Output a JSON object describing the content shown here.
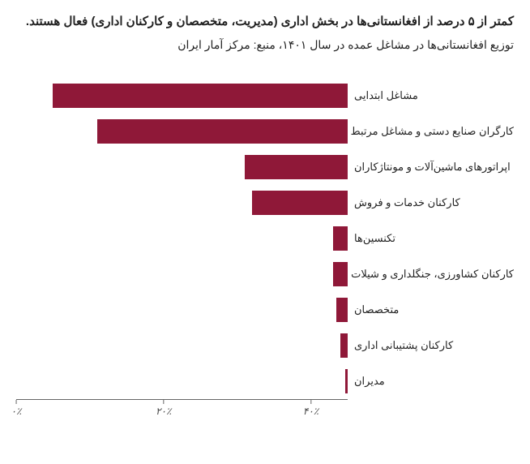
{
  "title": "کمتر از ۵ درصد از افغانستانی‌ها در بخش اداری (مدیریت، متخصصان و کارکنان اداری) فعال هستند.",
  "subtitle": "توزیع افغانستانی‌ها در مشاغل عمده در سال ۱۴۰۱، منبع: مرکز آمار ایران",
  "chart": {
    "type": "bar",
    "bar_color": "#8f1838",
    "background_color": "#ffffff",
    "axis_color": "#666666",
    "label_fontsize": 13,
    "title_fontsize": 15,
    "xmax": 45,
    "categories": [
      {
        "label": "مشاغل ابتدایی",
        "value": 40
      },
      {
        "label": "کارگران صنایع دستی و مشاغل مرتبط",
        "value": 34
      },
      {
        "label": "اپراتورهای ماشین‌آلات و مونتاژکاران",
        "value": 14
      },
      {
        "label": "کارکنان خدمات و فروش",
        "value": 13
      },
      {
        "label": "تکنسین‌ها",
        "value": 2
      },
      {
        "label": "کارکنان کشاورزی، جنگلداری و شیلات",
        "value": 2
      },
      {
        "label": "متخصصان",
        "value": 1.5
      },
      {
        "label": "کارکنان پشتیبانی اداری",
        "value": 1
      },
      {
        "label": "مدیران",
        "value": 0.3
      }
    ],
    "xticks": [
      {
        "pos": 0,
        "label": "۰٪"
      },
      {
        "pos": 20,
        "label": "۲۰٪"
      },
      {
        "pos": 40,
        "label": "۴۰٪"
      }
    ]
  }
}
